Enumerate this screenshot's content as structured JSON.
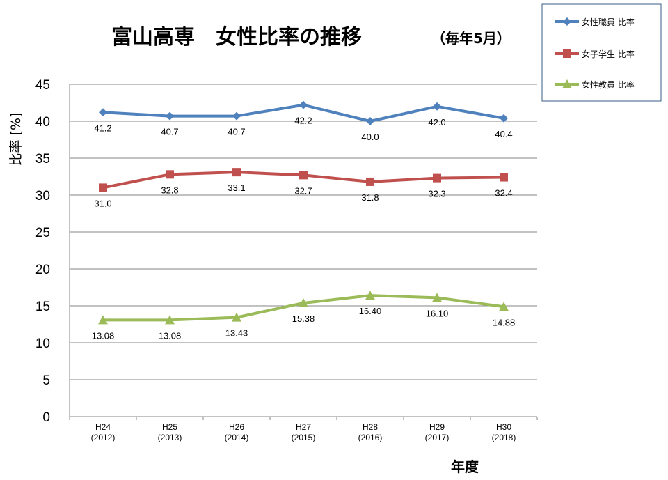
{
  "chart_data": {
    "type": "line",
    "title": "富山高専　女性比率の推移",
    "subtitle": "（毎年5月）",
    "ylabel": "比率 [%]",
    "xlabel": "年度",
    "ylim": [
      0,
      45
    ],
    "yticks": [
      0,
      5,
      10,
      15,
      20,
      25,
      30,
      35,
      40,
      45
    ],
    "categories": [
      [
        "H24",
        "(2012)"
      ],
      [
        "H25",
        "(2013)"
      ],
      [
        "H26",
        "(2014)"
      ],
      [
        "H27",
        "(2015)"
      ],
      [
        "H28",
        "(2016)"
      ],
      [
        "H29",
        "(2017)"
      ],
      [
        "H30",
        "(2018)"
      ]
    ],
    "grid": true,
    "legend_position": "top-right",
    "series": [
      {
        "name": "女性職員 比率",
        "values": [
          41.2,
          40.7,
          40.7,
          42.2,
          40.0,
          42.0,
          40.4
        ],
        "labels": [
          "41.2",
          "40.7",
          "40.7",
          "42.2",
          "40.0",
          "42.0",
          "40.4"
        ],
        "color": "#4F81BD",
        "marker": "diamond"
      },
      {
        "name": "女子学生  比率",
        "values": [
          31.0,
          32.8,
          33.1,
          32.7,
          31.8,
          32.3,
          32.4
        ],
        "labels": [
          "31.0",
          "32.8",
          "33.1",
          "32.7",
          "31.8",
          "32.3",
          "32.4"
        ],
        "color": "#C0504D",
        "marker": "square"
      },
      {
        "name": "女性教員 比率",
        "values": [
          13.08,
          13.08,
          13.43,
          15.38,
          16.4,
          16.1,
          14.88
        ],
        "labels": [
          "13.08",
          "13.08",
          "13.43",
          "15.38",
          "16.40",
          "16.10",
          "14.88"
        ],
        "color": "#9BBB59",
        "marker": "triangle"
      }
    ]
  }
}
